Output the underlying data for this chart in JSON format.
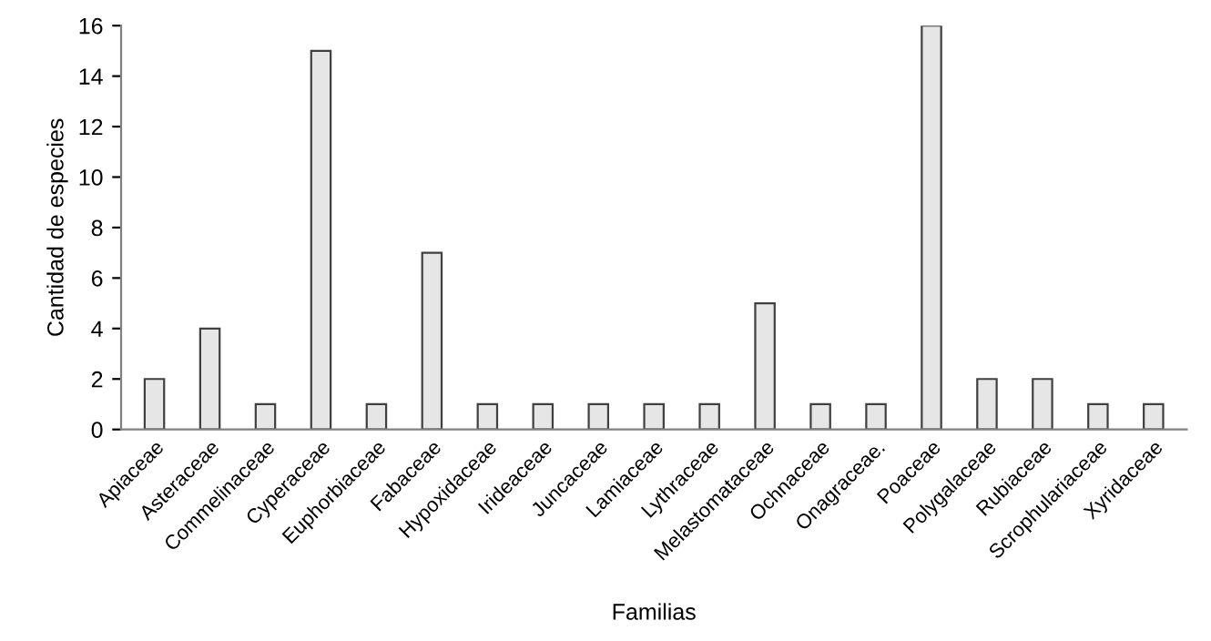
{
  "chart_data": {
    "type": "bar",
    "xlabel": "Familias",
    "ylabel": "Cantidad de especies",
    "categories": [
      "Apiaceae",
      "Asteraceae",
      "Commelinaceae",
      "Cyperaceae",
      "Euphorbiaceae",
      "Fabaceae",
      "Hypoxidaceae",
      "Irideaceae",
      "Juncaceae",
      "Lamiaceae",
      "Lythraceae",
      "Melastomataceae",
      "Ochnaceae",
      "Onagraceae.",
      "Poaceae",
      "Polygalaceae",
      "Rubiaceae",
      "Scrophulariaceae",
      "Xyridaceae"
    ],
    "values": [
      2,
      4,
      1,
      15,
      1,
      7,
      1,
      1,
      1,
      1,
      1,
      5,
      1,
      1,
      16,
      2,
      2,
      1,
      1
    ],
    "color": "#e6e6e6",
    "ylim": [
      0,
      16
    ],
    "yticks": [
      0,
      2,
      4,
      6,
      8,
      10,
      12,
      14,
      16
    ],
    "grid": false,
    "legend": false
  }
}
